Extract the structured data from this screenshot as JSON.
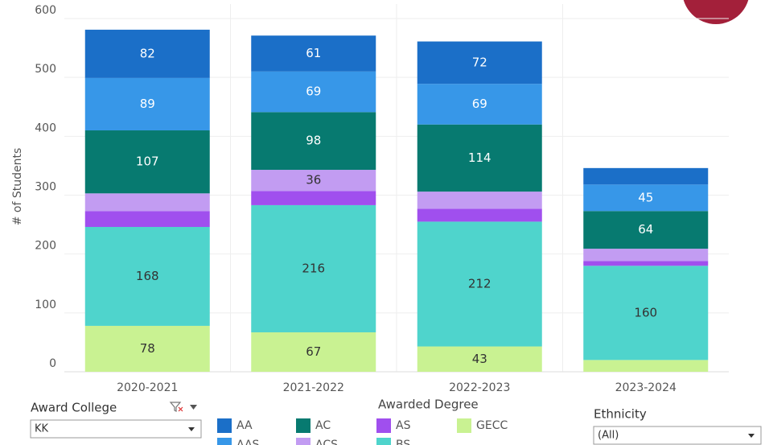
{
  "chart_data": {
    "type": "stacked_bar",
    "y_label": "# of Students",
    "categories": [
      "2020-2021",
      "2021-2022",
      "2022-2023",
      "2023-2024"
    ],
    "series": [
      {
        "name": "AA",
        "color": "#1b6fc8",
        "values": [
          82,
          61,
          72,
          28
        ]
      },
      {
        "name": "AAS",
        "color": "#3797e8",
        "values": [
          89,
          69,
          69,
          45
        ]
      },
      {
        "name": "AC",
        "color": "#077a70",
        "values": [
          107,
          98,
          114,
          64
        ]
      },
      {
        "name": "ACS",
        "color": "#c29cf2",
        "values": [
          30,
          36,
          29,
          21
        ]
      },
      {
        "name": "AS",
        "color": "#a04fee",
        "values": [
          27,
          24,
          22,
          8
        ]
      },
      {
        "name": "BS",
        "color": "#4fd4cc",
        "values": [
          168,
          216,
          212,
          160
        ]
      },
      {
        "name": "GECC",
        "color": "#c9f292",
        "values": [
          78,
          67,
          43,
          20
        ]
      }
    ],
    "ylim": [
      0,
      600
    ],
    "yticks": [
      0,
      100,
      200,
      300,
      400,
      500,
      600
    ],
    "grid": true,
    "legend_title": "Awarded Degree",
    "filters": [
      {
        "label": "Award College",
        "value": "KK"
      },
      {
        "label": "Ethnicity",
        "value": "(All)"
      }
    ]
  }
}
